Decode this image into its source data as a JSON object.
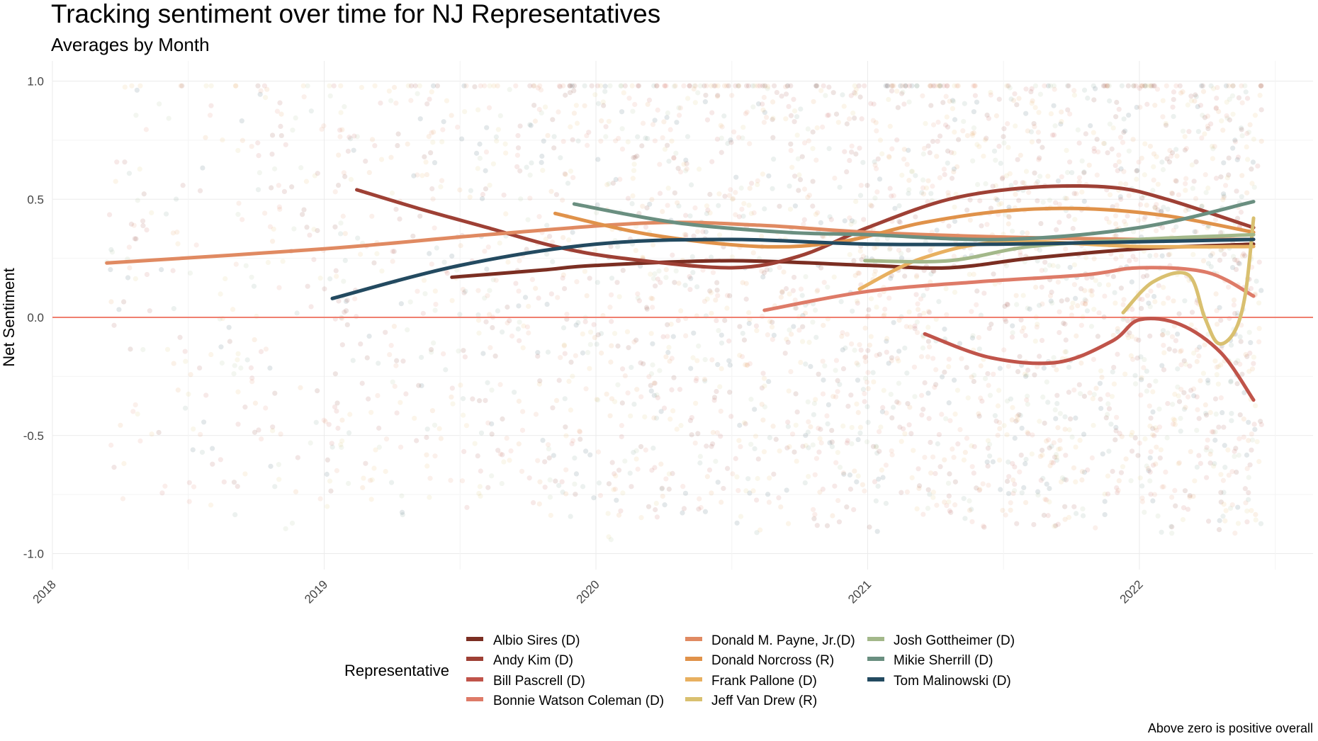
{
  "chart_data": {
    "type": "line",
    "title": "Tracking sentiment over time for NJ Representatives",
    "subtitle": "Averages by Month",
    "xlabel": "",
    "ylabel": "Net Sentiment",
    "caption": "Above zero is positive overall",
    "xlim": [
      2018,
      2022.65
    ],
    "ylim": [
      -1.05,
      1.1
    ],
    "x_ticks": [
      "2018",
      "2019",
      "2020",
      "2021",
      "2022"
    ],
    "y_ticks": [
      "1.0",
      "0.5",
      "0.0",
      "-0.5",
      "-1.0"
    ],
    "y_tick_values": [
      1.0,
      0.5,
      0.0,
      -0.5,
      -1.0
    ],
    "x_tick_values": [
      2018,
      2019,
      2020,
      2021,
      2022
    ],
    "reference_line": {
      "y": 0,
      "color": "#F08070"
    },
    "grid": true,
    "legend_title": "Representative",
    "legend_position": "bottom",
    "series": [
      {
        "name": "Albio Sires (D)",
        "color": "#7B2E22",
        "points": [
          [
            2019.47,
            0.17
          ],
          [
            2019.8,
            0.2
          ],
          [
            2020,
            0.22
          ],
          [
            2020.5,
            0.24
          ],
          [
            2021,
            0.22
          ],
          [
            2021.3,
            0.21
          ],
          [
            2021.6,
            0.25
          ],
          [
            2022,
            0.29
          ],
          [
            2022.42,
            0.31
          ]
        ]
      },
      {
        "name": "Andy Kim (D)",
        "color": "#9E4035",
        "points": [
          [
            2019.12,
            0.54
          ],
          [
            2019.35,
            0.46
          ],
          [
            2019.6,
            0.38
          ],
          [
            2019.85,
            0.3
          ],
          [
            2020.1,
            0.25
          ],
          [
            2020.5,
            0.21
          ],
          [
            2020.75,
            0.26
          ],
          [
            2021,
            0.38
          ],
          [
            2021.3,
            0.5
          ],
          [
            2021.6,
            0.55
          ],
          [
            2021.9,
            0.55
          ],
          [
            2022.1,
            0.5
          ],
          [
            2022.42,
            0.38
          ]
        ]
      },
      {
        "name": "Bill Pascrell (D)",
        "color": "#C0544A",
        "points": [
          [
            2021.21,
            -0.07
          ],
          [
            2021.45,
            -0.17
          ],
          [
            2021.7,
            -0.19
          ],
          [
            2021.9,
            -0.1
          ],
          [
            2022.0,
            -0.01
          ],
          [
            2022.15,
            -0.03
          ],
          [
            2022.3,
            -0.15
          ],
          [
            2022.42,
            -0.35
          ]
        ]
      },
      {
        "name": "Bonnie Watson Coleman (D)",
        "color": "#DE7B68",
        "points": [
          [
            2020.62,
            0.03
          ],
          [
            2021,
            0.11
          ],
          [
            2021.4,
            0.15
          ],
          [
            2021.8,
            0.18
          ],
          [
            2022.0,
            0.21
          ],
          [
            2022.25,
            0.19
          ],
          [
            2022.42,
            0.09
          ]
        ]
      },
      {
        "name": "Donald M. Payne, Jr.(D)",
        "color": "#E08A62",
        "points": [
          [
            2018.2,
            0.23
          ],
          [
            2019,
            0.29
          ],
          [
            2019.6,
            0.35
          ],
          [
            2020.2,
            0.4
          ],
          [
            2020.6,
            0.39
          ],
          [
            2021,
            0.36
          ],
          [
            2021.5,
            0.34
          ],
          [
            2022,
            0.33
          ],
          [
            2022.42,
            0.33
          ]
        ]
      },
      {
        "name": "Donald Norcross (R)",
        "color": "#E0924A",
        "points": [
          [
            2019.85,
            0.44
          ],
          [
            2020.2,
            0.35
          ],
          [
            2020.6,
            0.3
          ],
          [
            2020.9,
            0.32
          ],
          [
            2021.2,
            0.4
          ],
          [
            2021.5,
            0.45
          ],
          [
            2021.8,
            0.46
          ],
          [
            2022.1,
            0.43
          ],
          [
            2022.42,
            0.36
          ]
        ]
      },
      {
        "name": "Frank Pallone (D)",
        "color": "#E8B060",
        "points": [
          [
            2020.97,
            0.12
          ],
          [
            2021.2,
            0.25
          ],
          [
            2021.5,
            0.32
          ],
          [
            2022,
            0.3
          ],
          [
            2022.42,
            0.3
          ]
        ]
      },
      {
        "name": "Jeff Van Drew (R)",
        "color": "#D9C070",
        "points": [
          [
            2021.94,
            0.02
          ],
          [
            2022.05,
            0.15
          ],
          [
            2022.18,
            0.18
          ],
          [
            2022.24,
            0.0
          ],
          [
            2022.29,
            -0.11
          ],
          [
            2022.35,
            -0.06
          ],
          [
            2022.39,
            0.1
          ],
          [
            2022.42,
            0.42
          ]
        ]
      },
      {
        "name": "Josh Gottheimer (D)",
        "color": "#A3B88A",
        "points": [
          [
            2020.99,
            0.24
          ],
          [
            2021.3,
            0.24
          ],
          [
            2021.6,
            0.3
          ],
          [
            2022,
            0.33
          ],
          [
            2022.42,
            0.35
          ]
        ]
      },
      {
        "name": "Mikie Sherrill (D)",
        "color": "#6A8F80",
        "points": [
          [
            2019.92,
            0.48
          ],
          [
            2020.3,
            0.4
          ],
          [
            2020.7,
            0.36
          ],
          [
            2021,
            0.35
          ],
          [
            2021.5,
            0.33
          ],
          [
            2022,
            0.38
          ],
          [
            2022.42,
            0.49
          ]
        ]
      },
      {
        "name": "Tom Malinowski (D)",
        "color": "#234A60",
        "points": [
          [
            2019.03,
            0.08
          ],
          [
            2019.5,
            0.22
          ],
          [
            2020,
            0.31
          ],
          [
            2020.5,
            0.33
          ],
          [
            2021,
            0.31
          ],
          [
            2021.5,
            0.31
          ],
          [
            2022,
            0.32
          ],
          [
            2022.42,
            0.33
          ]
        ]
      }
    ]
  }
}
